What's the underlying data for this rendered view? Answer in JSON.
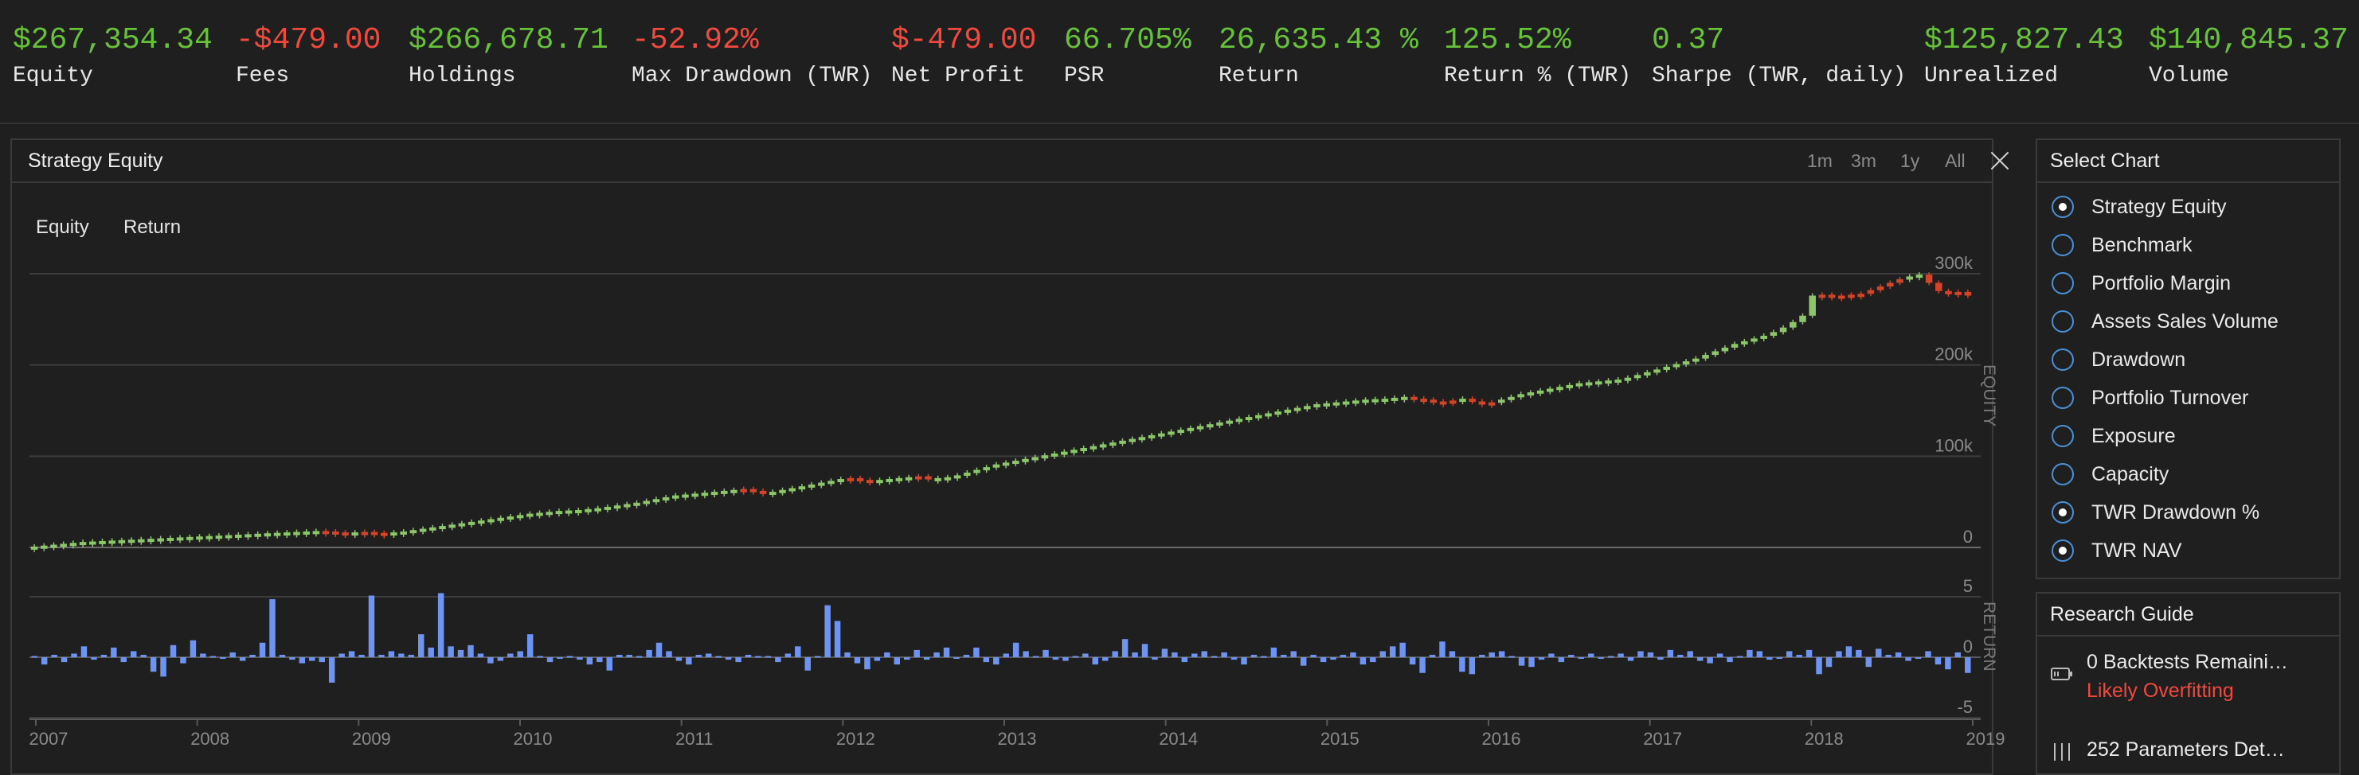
{
  "stats": [
    {
      "value": "$267,354.34",
      "label": "Equity",
      "tone": "pos"
    },
    {
      "value": "-$479.00",
      "label": "Fees",
      "tone": "neg"
    },
    {
      "value": "$266,678.71",
      "label": "Holdings",
      "tone": "pos"
    },
    {
      "value": "-52.92%",
      "label": "Max Drawdown (TWR)",
      "tone": "neg"
    },
    {
      "value": "$-479.00",
      "label": "Net Profit",
      "tone": "neg"
    },
    {
      "value": "66.705%",
      "label": "PSR",
      "tone": "pos"
    },
    {
      "value": "26,635.43 %",
      "label": "Return",
      "tone": "pos"
    },
    {
      "value": "125.52%",
      "label": "Return % (TWR)",
      "tone": "pos"
    },
    {
      "value": "0.37",
      "label": "Sharpe (TWR, daily)",
      "tone": "pos"
    },
    {
      "value": "$125,827.43",
      "label": "Unrealized",
      "tone": "pos"
    },
    {
      "value": "$140,845.37",
      "label": "Volume",
      "tone": "pos"
    }
  ],
  "chart_panel": {
    "title": "Strategy Equity",
    "ranges": [
      "1m",
      "3m",
      "1y",
      "All"
    ],
    "series_toggles": [
      "Equity",
      "Return"
    ]
  },
  "colors": {
    "up": "#8cc56a",
    "down": "#d2452a",
    "return_bar": "#6f93f0",
    "positive_text": "#67c23a",
    "negative_text": "#f04a3e",
    "radio_accent": "#4a90d9"
  },
  "chart_data": {
    "type": "candlestick+bar",
    "equity": {
      "axis_label": "EQUITY",
      "ticks": [
        "300k",
        "200k",
        "100k",
        "0"
      ],
      "tick_values": [
        300000,
        200000,
        100000,
        0
      ],
      "ylim": [
        0,
        300000
      ],
      "monthly_close": [
        1000,
        2000,
        3000,
        4000,
        5000,
        6000,
        6500,
        7000,
        7500,
        8000,
        8500,
        9000,
        9500,
        10000,
        10500,
        11000,
        11500,
        12000,
        12500,
        13000,
        13500,
        14000,
        14500,
        15000,
        15500,
        16000,
        16500,
        17000,
        17500,
        18000,
        17500,
        16500,
        16000,
        16500,
        17000,
        16000,
        15500,
        16500,
        17500,
        19000,
        20500,
        22000,
        23500,
        25000,
        26500,
        28000,
        29500,
        31000,
        32500,
        34000,
        35500,
        37000,
        38000,
        39000,
        40000,
        40500,
        41000,
        42000,
        43000,
        44500,
        46000,
        47500,
        49000,
        51000,
        53000,
        55000,
        57000,
        58000,
        59000,
        60000,
        61000,
        62000,
        63000,
        64000,
        62000,
        60000,
        61000,
        63000,
        65000,
        67000,
        69000,
        71000,
        73000,
        75000,
        76000,
        74000,
        73000,
        74000,
        75000,
        76000,
        77000,
        78000,
        76000,
        76000,
        77000,
        79000,
        82000,
        85000,
        88000,
        91000,
        93000,
        95000,
        97000,
        99000,
        101000,
        103000,
        105000,
        107000,
        109000,
        111000,
        113000,
        115000,
        117000,
        119000,
        121000,
        123000,
        125000,
        127000,
        129000,
        131000,
        133000,
        135000,
        137000,
        139000,
        141000,
        143000,
        145000,
        147000,
        149000,
        151000,
        153000,
        155000,
        157000,
        158000,
        159000,
        160000,
        161000,
        162000,
        162500,
        163000,
        164000,
        165000,
        163000,
        162000,
        160000,
        158000,
        161000,
        163000,
        160000,
        157000,
        159000,
        162000,
        165000,
        168000,
        170000,
        172000,
        174000,
        176000,
        178000,
        180000,
        181000,
        182000,
        183000,
        184000,
        186000,
        189000,
        192000,
        195000,
        198000,
        201000,
        204000,
        207000,
        211000,
        215000,
        219000,
        223000,
        226000,
        229000,
        232000,
        236000,
        241000,
        247000,
        254000,
        276000,
        277000,
        275000,
        276000,
        277000,
        278000,
        282000,
        286000,
        290000,
        294000,
        297000,
        299000,
        290000,
        281000,
        278000,
        280000,
        276000
      ],
      "first_month": "2007-01",
      "note_down_months_index": [
        30,
        31,
        32,
        34,
        35,
        36,
        73,
        74,
        75,
        84,
        85,
        86,
        91,
        92,
        142,
        143,
        144,
        145,
        146,
        148,
        149,
        150,
        184,
        185,
        186,
        187,
        188,
        189,
        190,
        191,
        192,
        195,
        196,
        197,
        198
      ]
    },
    "return": {
      "axis_label": "RETURN",
      "ticks": [
        "5",
        "0",
        "-5"
      ],
      "tick_values": [
        5,
        0,
        -5
      ],
      "ylim": [
        -5,
        5
      ],
      "values": [
        0.1,
        -0.6,
        0.2,
        -0.4,
        0.3,
        0.9,
        -0.2,
        0.2,
        0.8,
        -0.4,
        0.5,
        0.2,
        -1.2,
        -1.6,
        1.0,
        -0.5,
        1.4,
        0.3,
        0.1,
        0.0,
        0.4,
        -0.3,
        0.2,
        1.2,
        4.8,
        0.2,
        -0.2,
        -0.5,
        -0.3,
        -0.4,
        -2.1,
        0.3,
        0.5,
        0.2,
        5.1,
        0.2,
        0.5,
        0.3,
        0.2,
        1.9,
        0.8,
        5.3,
        0.9,
        0.6,
        1.0,
        0.3,
        -0.5,
        -0.3,
        0.3,
        0.5,
        1.9,
        0.1,
        -0.4,
        0.0,
        0.1,
        -0.2,
        -0.6,
        -0.4,
        -1.1,
        0.2,
        0.2,
        0.1,
        0.6,
        1.2,
        0.5,
        -0.3,
        -0.6,
        0.2,
        0.3,
        0.1,
        -0.2,
        -0.4,
        0.2,
        0.1,
        0.1,
        -0.4,
        0.3,
        0.9,
        -1.1,
        0.1,
        4.3,
        3.0,
        0.4,
        -0.5,
        -1.0,
        -0.3,
        0.4,
        -0.6,
        -0.2,
        0.6,
        -0.2,
        0.4,
        0.8,
        -0.1,
        0.2,
        0.8,
        -0.4,
        -0.6,
        0.3,
        1.2,
        0.5,
        0.1,
        0.6,
        -0.2,
        -0.3,
        0.1,
        0.3,
        -0.6,
        -0.3,
        0.5,
        1.5,
        0.4,
        1.1,
        -0.2,
        0.7,
        0.4,
        -0.4,
        0.3,
        0.5,
        0.1,
        0.4,
        -0.2,
        -0.6,
        0.2,
        0.1,
        0.8,
        0.2,
        0.5,
        -0.7,
        0.2,
        -0.4,
        -0.2,
        0.2,
        0.4,
        -0.6,
        -0.4,
        0.5,
        0.9,
        1.2,
        -0.6,
        -1.3,
        0.2,
        1.3,
        0.5,
        -1.2,
        -1.4,
        0.2,
        0.4,
        0.5,
        0.1,
        -0.7,
        -0.8,
        -0.2,
        0.3,
        -0.4,
        0.2,
        0.0,
        0.3,
        0.0,
        0.1,
        0.3,
        -0.3,
        0.5,
        0.4,
        -0.2,
        0.6,
        0.2,
        0.5,
        -0.3,
        -0.5,
        0.3,
        -0.4,
        0.1,
        0.6,
        0.5,
        -0.2,
        -0.1,
        0.5,
        0.2,
        0.6,
        -1.4,
        -0.8,
        0.5,
        0.9,
        0.6,
        -0.8,
        0.7,
        0.2,
        0.4,
        -0.3,
        0.0,
        0.5,
        -0.6,
        -1.0,
        0.4,
        -1.3
      ]
    },
    "x_ticks": [
      "2007",
      "2008",
      "2009",
      "2010",
      "2011",
      "2012",
      "2013",
      "2014",
      "2015",
      "2016",
      "2017",
      "2018",
      "2019"
    ]
  },
  "select_chart": {
    "title": "Select Chart",
    "options": [
      {
        "label": "Strategy Equity",
        "selected": true
      },
      {
        "label": "Benchmark",
        "selected": false
      },
      {
        "label": "Portfolio Margin",
        "selected": false
      },
      {
        "label": "Assets Sales Volume",
        "selected": false
      },
      {
        "label": "Drawdown",
        "selected": false
      },
      {
        "label": "Portfolio Turnover",
        "selected": false
      },
      {
        "label": "Exposure",
        "selected": false
      },
      {
        "label": "Capacity",
        "selected": false
      },
      {
        "label": "TWR Drawdown %",
        "selected": true
      },
      {
        "label": "TWR NAV",
        "selected": true
      }
    ]
  },
  "research_guide": {
    "title": "Research Guide",
    "items": [
      {
        "text": "0 Backtests Remaini…",
        "sub": "Likely Overfitting",
        "icon": "battery-icon"
      },
      {
        "text": "252 Parameters Det…",
        "sub": "",
        "icon": "sliders-icon"
      }
    ]
  }
}
